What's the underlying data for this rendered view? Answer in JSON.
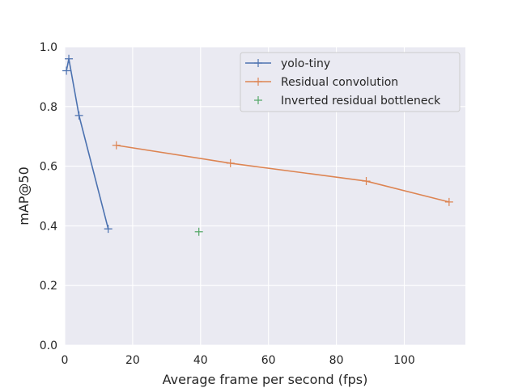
{
  "chart_data": {
    "type": "line",
    "xlabel": "Average frame per second (fps)",
    "ylabel": "mAP@50",
    "xlim": [
      0,
      118
    ],
    "ylim": [
      0.0,
      1.0
    ],
    "xticks": [
      0,
      20,
      40,
      60,
      80,
      100
    ],
    "yticks": [
      0.0,
      0.2,
      0.4,
      0.6,
      0.8,
      1.0
    ],
    "xtick_labels": [
      "0",
      "20",
      "40",
      "60",
      "80",
      "100"
    ],
    "ytick_labels": [
      "0.0",
      "0.2",
      "0.4",
      "0.6",
      "0.8",
      "1.0"
    ],
    "grid": true,
    "legend_position": "top-right",
    "marker": "+",
    "series": [
      {
        "name": "yolo-tiny",
        "color": "#4c72b0",
        "line": true,
        "points": [
          [
            0.5,
            0.92
          ],
          [
            1.2,
            0.96
          ],
          [
            4.2,
            0.77
          ],
          [
            12.8,
            0.39
          ]
        ]
      },
      {
        "name": "Residual convolution",
        "color": "#dd8452",
        "line": true,
        "points": [
          [
            15.2,
            0.67
          ],
          [
            48.8,
            0.61
          ],
          [
            88.8,
            0.55
          ],
          [
            113.2,
            0.48
          ]
        ]
      },
      {
        "name": "Inverted residual bottleneck",
        "color": "#55a868",
        "line": false,
        "points": [
          [
            39.5,
            0.38
          ]
        ]
      }
    ]
  }
}
